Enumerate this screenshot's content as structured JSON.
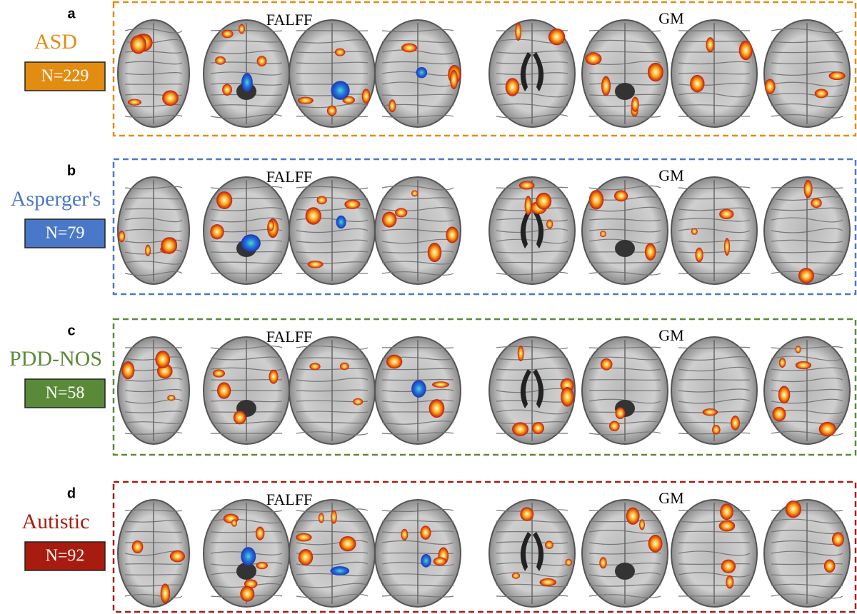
{
  "panels": [
    {
      "letter": "a",
      "group": "ASD",
      "count": "N=229",
      "left_label": "FALFF",
      "right_label": "GM",
      "color": "#e28c12"
    },
    {
      "letter": "b",
      "group": "Asperger's",
      "count": "N=79",
      "left_label": "FALFF",
      "right_label": "GM",
      "color": "#4a78c8"
    },
    {
      "letter": "c",
      "group": "PDD-NOS",
      "count": "N=58",
      "left_label": "FALFF",
      "right_label": "GM",
      "color": "#5a8a38"
    },
    {
      "letter": "d",
      "group": "Autistic",
      "count": "N=92",
      "left_label": "FALFF",
      "right_label": "GM",
      "color": "#a81c10"
    }
  ]
}
